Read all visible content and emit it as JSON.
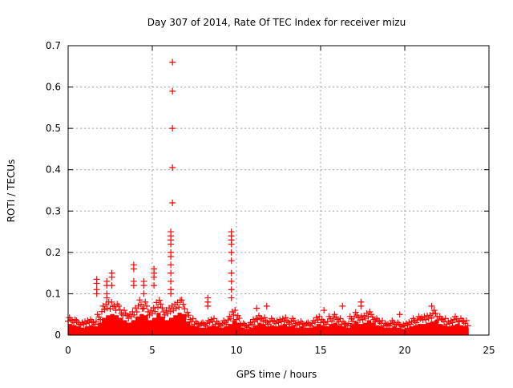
{
  "chart_data": {
    "type": "scatter",
    "title": "Day 307 of 2014, Rate Of TEC Index for receiver mizu",
    "xlabel": "GPS time / hours",
    "ylabel": "ROTI / TECUs",
    "xlim": [
      0,
      25
    ],
    "ylim": [
      0,
      0.7
    ],
    "xticks": [
      "0",
      "5",
      "10",
      "15",
      "20",
      "25"
    ],
    "yticks": [
      "0",
      "0.1",
      "0.2",
      "0.3",
      "0.4",
      "0.5",
      "0.6",
      "0.7"
    ],
    "grid": true,
    "marker": "plus",
    "color": "#ff0000",
    "envelope_step_hours": 0.25,
    "envelope_max": [
      0.045,
      0.04,
      0.035,
      0.03,
      0.035,
      0.04,
      0.035,
      0.05,
      0.07,
      0.08,
      0.085,
      0.08,
      0.07,
      0.06,
      0.05,
      0.06,
      0.075,
      0.085,
      0.08,
      0.06,
      0.07,
      0.09,
      0.075,
      0.06,
      0.07,
      0.08,
      0.09,
      0.085,
      0.055,
      0.04,
      0.035,
      0.03,
      0.03,
      0.035,
      0.04,
      0.035,
      0.03,
      0.035,
      0.045,
      0.06,
      0.05,
      0.03,
      0.025,
      0.03,
      0.04,
      0.05,
      0.045,
      0.035,
      0.04,
      0.035,
      0.04,
      0.045,
      0.035,
      0.04,
      0.03,
      0.035,
      0.03,
      0.03,
      0.035,
      0.045,
      0.04,
      0.035,
      0.045,
      0.05,
      0.04,
      0.035,
      0.03,
      0.045,
      0.055,
      0.045,
      0.05,
      0.06,
      0.05,
      0.04,
      0.035,
      0.03,
      0.03,
      0.035,
      0.03,
      0.025,
      0.03,
      0.035,
      0.04,
      0.045,
      0.045,
      0.05,
      0.055,
      0.06,
      0.045,
      0.04,
      0.035,
      0.04,
      0.045,
      0.04,
      0.035,
      0.03
    ],
    "spikes": [
      {
        "x": 6.2,
        "y": [
          0.66,
          0.59,
          0.5,
          0.405,
          0.32
        ]
      },
      {
        "x": 6.1,
        "y": [
          0.25,
          0.24,
          0.23,
          0.22,
          0.2,
          0.19,
          0.17,
          0.15,
          0.13,
          0.11,
          0.1
        ]
      },
      {
        "x": 9.7,
        "y": [
          0.25,
          0.24,
          0.23,
          0.22,
          0.2,
          0.18,
          0.15,
          0.13,
          0.11,
          0.09
        ]
      },
      {
        "x": 1.7,
        "y": [
          0.135,
          0.125,
          0.11,
          0.1
        ]
      },
      {
        "x": 2.3,
        "y": [
          0.13,
          0.12,
          0.1,
          0.09
        ]
      },
      {
        "x": 2.6,
        "y": [
          0.15,
          0.14,
          0.12
        ]
      },
      {
        "x": 3.9,
        "y": [
          0.17,
          0.16,
          0.13,
          0.12
        ]
      },
      {
        "x": 4.5,
        "y": [
          0.13,
          0.12,
          0.1
        ]
      },
      {
        "x": 5.1,
        "y": [
          0.16,
          0.15,
          0.14,
          0.12
        ]
      },
      {
        "x": 8.3,
        "y": [
          0.09,
          0.08,
          0.07
        ]
      },
      {
        "x": 11.2,
        "y": [
          0.065
        ]
      },
      {
        "x": 11.8,
        "y": [
          0.07
        ]
      },
      {
        "x": 15.2,
        "y": [
          0.06
        ]
      },
      {
        "x": 16.3,
        "y": [
          0.07
        ]
      },
      {
        "x": 17.4,
        "y": [
          0.08,
          0.07
        ]
      },
      {
        "x": 19.7,
        "y": [
          0.05
        ]
      },
      {
        "x": 21.6,
        "y": [
          0.07
        ]
      }
    ]
  }
}
